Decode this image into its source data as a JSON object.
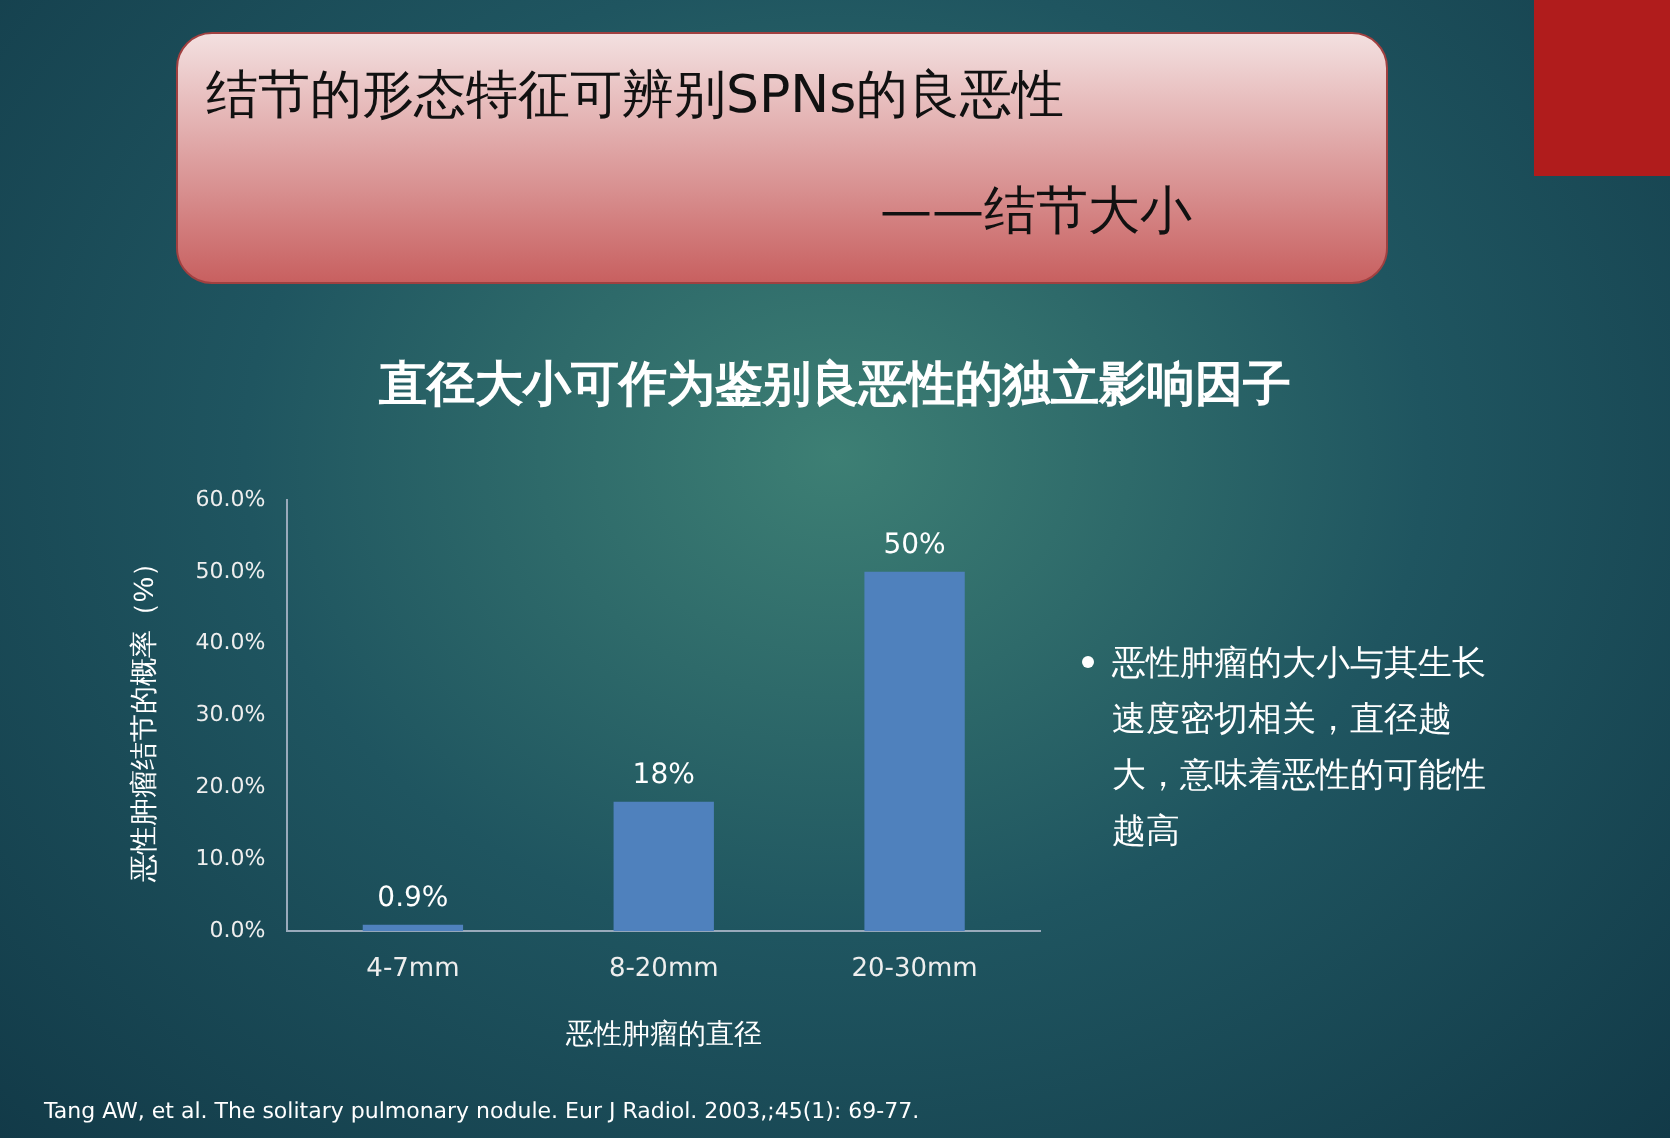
{
  "chart_data": {
    "type": "bar",
    "title": "直径大小可作为鉴别良恶性的独立影响因子",
    "xlabel": "恶性肿瘤的直径",
    "ylabel": "恶性肿瘤结节的概率（%）",
    "categories": [
      "4-7mm",
      "8-20mm",
      "20-30mm"
    ],
    "values": [
      0.9,
      18,
      50
    ],
    "value_labels": [
      "0.9%",
      "18%",
      "50%"
    ],
    "color": "#4f81bd",
    "ylim": [
      0,
      60
    ],
    "yticks": [
      {
        "value": 0,
        "label": "0.0%"
      },
      {
        "value": 10,
        "label": "10.0%"
      },
      {
        "value": 20,
        "label": "20.0%"
      },
      {
        "value": 30,
        "label": "30.0%"
      },
      {
        "value": 40,
        "label": "40.0%"
      },
      {
        "value": 50,
        "label": "50.0%"
      },
      {
        "value": 60,
        "label": "60.0%"
      }
    ],
    "grid": false,
    "legend": false,
    "annotations": [
      "结节的形态特征可辨别SPNs的良恶性",
      "——结节大小",
      "恶性肿瘤的大小与其生长速度密切相关，直径越大，意味着恶性的可能性越高",
      "Tang AW, et al. The solitary pulmonary nodule. Eur J Radiol. 2003,;45(1): 69-77."
    ]
  }
}
